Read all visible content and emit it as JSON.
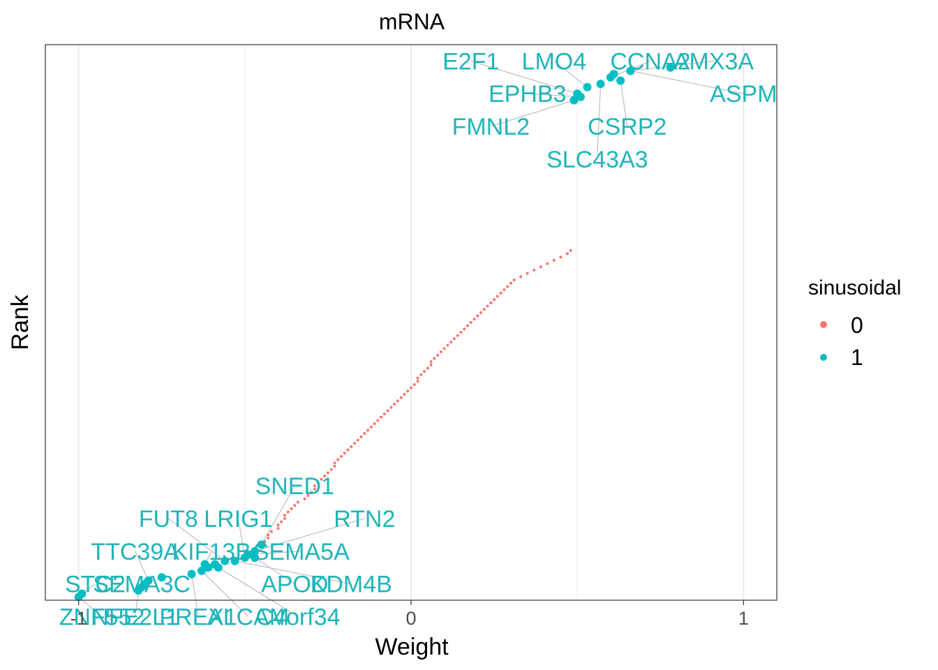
{
  "chart_data": {
    "type": "scatter",
    "title": "mRNA",
    "xlabel": "Weight",
    "ylabel": "Rank",
    "xlim": [
      -1.1,
      1.1
    ],
    "ylim": [
      0,
      170
    ],
    "x_ticks": [
      -1,
      0,
      1
    ],
    "x_tick_labels": [
      "-1",
      "0",
      "1"
    ],
    "grid": true,
    "legend": {
      "title": "sinusoidal",
      "position": "right",
      "entries": [
        "0",
        "1"
      ]
    },
    "colors": {
      "0": "#F8766D",
      "1": "#00BFC4",
      "label": "#1FB5B9",
      "leader": "#BDBDBD",
      "grid": "#EBEBEB"
    },
    "series": [
      {
        "name": "1",
        "labeled_points": [
          {
            "label": "ZNF552",
            "x": -1.0,
            "y": 1,
            "lx": -0.93,
            "ly": -5
          },
          {
            "label": "NFE2L1",
            "x": -0.82,
            "y": 3,
            "lx": -0.83,
            "ly": -5
          },
          {
            "label": "STC2",
            "x": -0.99,
            "y": 2,
            "lx": -0.95,
            "ly": 5
          },
          {
            "label": "SEMA3C",
            "x": -0.8,
            "y": 5,
            "lx": -0.81,
            "ly": 5
          },
          {
            "label": "TTC39A",
            "x": -0.79,
            "y": 6,
            "lx": -0.83,
            "ly": 15
          },
          {
            "label": "PREX1",
            "x": -0.66,
            "y": 8,
            "lx": -0.64,
            "ly": -5
          },
          {
            "label": "ALCAM",
            "x": -0.63,
            "y": 9,
            "lx": -0.49,
            "ly": -5
          },
          {
            "label": "C4orf34",
            "x": -0.58,
            "y": 10,
            "lx": -0.34,
            "ly": -5
          },
          {
            "label": "KIF13B",
            "x": -0.62,
            "y": 11,
            "lx": -0.6,
            "ly": 15
          },
          {
            "label": "FUT8",
            "x": -0.56,
            "y": 12,
            "lx": -0.73,
            "ly": 25
          },
          {
            "label": "LRIG1",
            "x": -0.5,
            "y": 13,
            "lx": -0.52,
            "ly": 25
          },
          {
            "label": "APOD",
            "x": -0.47,
            "y": 13,
            "lx": -0.35,
            "ly": 5
          },
          {
            "label": "KDM4B",
            "x": -0.53,
            "y": 12,
            "lx": -0.18,
            "ly": 5
          },
          {
            "label": "SEMA5A",
            "x": -0.49,
            "y": 14,
            "lx": -0.33,
            "ly": 15
          },
          {
            "label": "RTN2",
            "x": -0.47,
            "y": 15,
            "lx": -0.14,
            "ly": 25
          },
          {
            "label": "SNED1",
            "x": -0.45,
            "y": 17,
            "lx": -0.35,
            "ly": 35
          },
          {
            "label": "E2F1",
            "x": 0.5,
            "y": 155,
            "lx": 0.18,
            "ly": 165
          },
          {
            "label": "LMO4",
            "x": 0.53,
            "y": 157,
            "lx": 0.43,
            "ly": 165
          },
          {
            "label": "CCNA2",
            "x": 0.6,
            "y": 160,
            "lx": 0.72,
            "ly": 165
          },
          {
            "label": "AMX3A",
            "x": 0.66,
            "y": 162,
            "lx": 0.91,
            "ly": 165
          },
          {
            "label": "ASPM",
            "x": 0.66,
            "y": 162,
            "lx": 1.0,
            "ly": 155
          },
          {
            "label": "EPHB3",
            "x": 0.51,
            "y": 154,
            "lx": 0.35,
            "ly": 155
          },
          {
            "label": "CSRP2",
            "x": 0.63,
            "y": 159,
            "lx": 0.65,
            "ly": 145
          },
          {
            "label": "FMNL2",
            "x": 0.49,
            "y": 153,
            "lx": 0.24,
            "ly": 145
          },
          {
            "label": "SLC43A3",
            "x": 0.57,
            "y": 158,
            "lx": 0.56,
            "ly": 135
          }
        ],
        "extra_points": [
          {
            "x": 0.61,
            "y": 161
          },
          {
            "x": 0.78,
            "y": 163
          },
          {
            "x": -0.75,
            "y": 7
          },
          {
            "x": -0.81,
            "y": 4
          },
          {
            "x": -0.59,
            "y": 11
          },
          {
            "x": -0.61,
            "y": 10
          }
        ]
      },
      {
        "name": "0",
        "points_x": [
          -0.44,
          -0.43,
          -0.43,
          -0.42,
          -0.4,
          -0.4,
          -0.39,
          -0.38,
          -0.38,
          -0.37,
          -0.36,
          -0.35,
          -0.34,
          -0.32,
          -0.31,
          -0.3,
          -0.29,
          -0.29,
          -0.28,
          -0.27,
          -0.26,
          -0.25,
          -0.24,
          -0.23,
          -0.23,
          -0.22,
          -0.21,
          -0.2,
          -0.19,
          -0.18,
          -0.17,
          -0.16,
          -0.15,
          -0.14,
          -0.13,
          -0.12,
          -0.11,
          -0.1,
          -0.09,
          -0.08,
          -0.07,
          -0.06,
          -0.05,
          -0.04,
          -0.03,
          -0.02,
          -0.01,
          0.0,
          0.01,
          0.02,
          0.02,
          0.03,
          0.04,
          0.05,
          0.06,
          0.06,
          0.07,
          0.08,
          0.09,
          0.1,
          0.11,
          0.12,
          0.13,
          0.14,
          0.15,
          0.16,
          0.17,
          0.18,
          0.19,
          0.2,
          0.21,
          0.22,
          0.23,
          0.24,
          0.25,
          0.26,
          0.27,
          0.28,
          0.29,
          0.3,
          0.31,
          0.33,
          0.35,
          0.37,
          0.39,
          0.41,
          0.43,
          0.45,
          0.47,
          0.48
        ],
        "points_y": [
          18,
          19,
          20,
          21,
          22,
          23,
          24,
          25,
          26,
          27,
          28,
          29,
          30,
          31,
          32,
          33,
          34,
          35,
          36,
          37,
          38,
          39,
          40,
          41,
          42,
          43,
          44,
          45,
          46,
          47,
          48,
          49,
          50,
          51,
          52,
          53,
          54,
          55,
          56,
          57,
          58,
          59,
          60,
          61,
          62,
          63,
          64,
          65,
          66,
          67,
          68,
          69,
          70,
          71,
          72,
          73,
          74,
          75,
          76,
          77,
          78,
          79,
          80,
          81,
          82,
          83,
          84,
          85,
          86,
          87,
          88,
          89,
          90,
          91,
          92,
          93,
          94,
          95,
          96,
          97,
          98,
          99,
          100,
          101,
          102,
          103,
          104,
          105,
          106,
          107
        ]
      }
    ]
  }
}
